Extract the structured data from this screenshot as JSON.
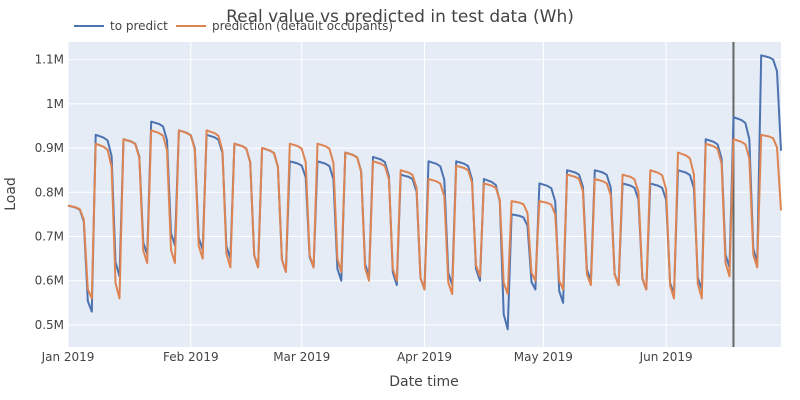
{
  "chart_data": {
    "type": "line",
    "title": "Real value vs predicted in test data (Wh)",
    "xlabel": "Date time",
    "ylabel": "Load",
    "x_range": [
      "2019-01-01",
      "2019-06-30"
    ],
    "ylim": [
      0.45,
      1.14
    ],
    "grid": true,
    "legend_placement": "top-left, horizontal",
    "vertical_marker_x": "2019-06-18",
    "x_ticks": [
      {
        "date": "2019-01-01",
        "label": "Jan 2019"
      },
      {
        "date": "2019-02-01",
        "label": "Feb 2019"
      },
      {
        "date": "2019-03-01",
        "label": "Mar 2019"
      },
      {
        "date": "2019-04-01",
        "label": "Apr 2019"
      },
      {
        "date": "2019-05-01",
        "label": "May 2019"
      },
      {
        "date": "2019-06-01",
        "label": "Jun 2019"
      }
    ],
    "y_ticks": [
      {
        "value": 0.5,
        "label": "0.5M"
      },
      {
        "value": 0.6,
        "label": "0.6M"
      },
      {
        "value": 0.7,
        "label": "0.7M"
      },
      {
        "value": 0.8,
        "label": "0.8M"
      },
      {
        "value": 0.9,
        "label": "0.9M"
      },
      {
        "value": 1.0,
        "label": "1M"
      },
      {
        "value": 1.1,
        "label": "1.1M"
      }
    ],
    "weekly_points": [
      {
        "date": "2019-01-01",
        "pred_high": 0.77,
        "pred_low": 0.56,
        "real_high": 0.77,
        "real_low": 0.53
      },
      {
        "date": "2019-01-08",
        "pred_high": 0.91,
        "pred_low": 0.56,
        "real_high": 0.93,
        "real_low": 0.61
      },
      {
        "date": "2019-01-15",
        "pred_high": 0.92,
        "pred_low": 0.64,
        "real_high": 0.92,
        "real_low": 0.66
      },
      {
        "date": "2019-01-22",
        "pred_high": 0.94,
        "pred_low": 0.64,
        "real_high": 0.96,
        "real_low": 0.68
      },
      {
        "date": "2019-01-29",
        "pred_high": 0.94,
        "pred_low": 0.65,
        "real_high": 0.94,
        "real_low": 0.67
      },
      {
        "date": "2019-02-05",
        "pred_high": 0.94,
        "pred_low": 0.63,
        "real_high": 0.93,
        "real_low": 0.65
      },
      {
        "date": "2019-02-12",
        "pred_high": 0.91,
        "pred_low": 0.63,
        "real_high": 0.91,
        "real_low": 0.63
      },
      {
        "date": "2019-02-19",
        "pred_high": 0.9,
        "pred_low": 0.62,
        "real_high": 0.9,
        "real_low": 0.62
      },
      {
        "date": "2019-02-26",
        "pred_high": 0.91,
        "pred_low": 0.63,
        "real_high": 0.87,
        "real_low": 0.63
      },
      {
        "date": "2019-03-05",
        "pred_high": 0.91,
        "pred_low": 0.62,
        "real_high": 0.87,
        "real_low": 0.6
      },
      {
        "date": "2019-03-12",
        "pred_high": 0.89,
        "pred_low": 0.6,
        "real_high": 0.89,
        "real_low": 0.61
      },
      {
        "date": "2019-03-19",
        "pred_high": 0.87,
        "pred_low": 0.6,
        "real_high": 0.88,
        "real_low": 0.59
      },
      {
        "date": "2019-03-26",
        "pred_high": 0.85,
        "pred_low": 0.58,
        "real_high": 0.84,
        "real_low": 0.58
      },
      {
        "date": "2019-04-02",
        "pred_high": 0.83,
        "pred_low": 0.57,
        "real_high": 0.87,
        "real_low": 0.59
      },
      {
        "date": "2019-04-09",
        "pred_high": 0.86,
        "pred_low": 0.61,
        "real_high": 0.87,
        "real_low": 0.6
      },
      {
        "date": "2019-04-16",
        "pred_high": 0.82,
        "pred_low": 0.57,
        "real_high": 0.83,
        "real_low": 0.49
      },
      {
        "date": "2019-04-23",
        "pred_high": 0.78,
        "pred_low": 0.6,
        "real_high": 0.75,
        "real_low": 0.58
      },
      {
        "date": "2019-04-30",
        "pred_high": 0.78,
        "pred_low": 0.58,
        "real_high": 0.82,
        "real_low": 0.55
      },
      {
        "date": "2019-05-07",
        "pred_high": 0.84,
        "pred_low": 0.59,
        "real_high": 0.85,
        "real_low": 0.6
      },
      {
        "date": "2019-05-14",
        "pred_high": 0.83,
        "pred_low": 0.59,
        "real_high": 0.85,
        "real_low": 0.59
      },
      {
        "date": "2019-05-21",
        "pred_high": 0.84,
        "pred_low": 0.58,
        "real_high": 0.82,
        "real_low": 0.58
      },
      {
        "date": "2019-05-28",
        "pred_high": 0.85,
        "pred_low": 0.56,
        "real_high": 0.82,
        "real_low": 0.57
      },
      {
        "date": "2019-06-04",
        "pred_high": 0.89,
        "pred_low": 0.56,
        "real_high": 0.85,
        "real_low": 0.58
      },
      {
        "date": "2019-06-11",
        "pred_high": 0.91,
        "pred_low": 0.61,
        "real_high": 0.92,
        "real_low": 0.63
      },
      {
        "date": "2019-06-18",
        "pred_high": 0.92,
        "pred_low": 0.63,
        "real_high": 0.97,
        "real_low": 0.64
      },
      {
        "date": "2019-06-25",
        "pred_high": 0.93,
        "pred_low": 0.74,
        "real_high": 1.11,
        "real_low": 0.87
      }
    ],
    "series": [
      {
        "name": "to predict",
        "color": "#4C72B0"
      },
      {
        "name": "prediction (default occupants)",
        "color": "#DD8452"
      }
    ]
  }
}
